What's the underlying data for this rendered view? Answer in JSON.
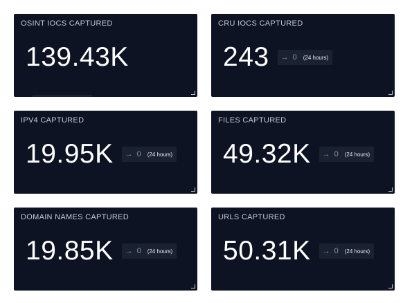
{
  "cards": [
    {
      "title": "OSINT IOCS CAPTURED",
      "value": "139.43K"
    },
    {
      "title": "CRU IOCS CAPTURED",
      "value": "243",
      "delta": {
        "arrow": "→",
        "value": "0",
        "period": "(24 hours)"
      }
    },
    {
      "title": "IPV4 CAPTURED",
      "value": "19.95K",
      "delta": {
        "arrow": "→",
        "value": "0",
        "period": "(24 hours)"
      }
    },
    {
      "title": "FILES CAPTURED",
      "value": "49.32K",
      "delta": {
        "arrow": "→",
        "value": "0",
        "period": "(24 hours)"
      }
    },
    {
      "title": "DOMAIN NAMES CAPTURED",
      "value": "19.85K",
      "delta": {
        "arrow": "→",
        "value": "0",
        "period": "(24 hours)"
      }
    },
    {
      "title": "URLS CAPTURED",
      "value": "50.31K",
      "delta": {
        "arrow": "→",
        "value": "0",
        "period": "(24 hours)"
      }
    }
  ],
  "colors": {
    "card_background": "#0d1322",
    "chip_background": "#1a2232",
    "page_background": "#ffffff"
  }
}
